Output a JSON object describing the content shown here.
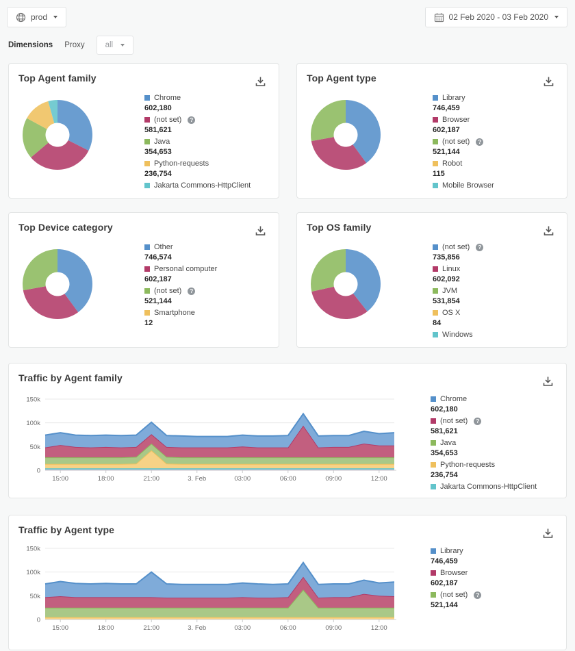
{
  "topbar": {
    "env_label": "prod",
    "date_range": "02 Feb 2020 - 03 Feb 2020"
  },
  "filter_bar": {
    "dimensions_label": "Dimensions",
    "proxy_label": "Proxy",
    "proxy_value": "all"
  },
  "icons": {
    "help_glyph": "?"
  },
  "palette": {
    "blue": {
      "line": "#5590ca",
      "fill": "#7fabd9"
    },
    "crimson": {
      "line": "#b23a68",
      "fill": "#c25f7f"
    },
    "green": {
      "line": "#8cb95d",
      "fill": "#a9c887"
    },
    "amber": {
      "line": "#efc05d",
      "fill": "#f7d286"
    },
    "teal": {
      "line": "#62c4cb",
      "fill": "#7fd0d4"
    },
    "magenta": {
      "line": "#e23fb1",
      "fill": "#ed7ac8"
    }
  },
  "chart_data": [
    {
      "type": "pie",
      "subtype": "donut",
      "title": "Top Agent family",
      "legend": [
        {
          "label": "Chrome",
          "display": "602,180",
          "color": "blue",
          "help": false,
          "arc": 602180
        },
        {
          "label": "(not set)",
          "display": "581,621",
          "color": "crimson",
          "help": true,
          "arc": 581621
        },
        {
          "label": "Java",
          "display": "354,653",
          "color": "green",
          "help": false,
          "arc": 354653
        },
        {
          "label": "Python-requests",
          "display": "236,754",
          "color": "amber",
          "help": false,
          "arc": 236754
        },
        {
          "label": "Jakarta Commons-HttpClient",
          "display": "",
          "color": "teal",
          "help": false,
          "arc": 80000,
          "arc_estimated": true
        }
      ]
    },
    {
      "type": "pie",
      "subtype": "donut",
      "title": "Top Agent type",
      "legend": [
        {
          "label": "Library",
          "display": "746,459",
          "color": "blue",
          "help": false,
          "arc": 746459
        },
        {
          "label": "Browser",
          "display": "602,187",
          "color": "crimson",
          "help": false,
          "arc": 602187
        },
        {
          "label": "(not set)",
          "display": "521,144",
          "color": "green",
          "help": true,
          "arc": 521144
        },
        {
          "label": "Robot",
          "display": "115",
          "color": "amber",
          "help": false,
          "arc": 115
        },
        {
          "label": "Mobile Browser",
          "display": "",
          "color": "teal",
          "help": false,
          "arc": 0
        }
      ]
    },
    {
      "type": "pie",
      "subtype": "donut",
      "title": "Top Device category",
      "legend": [
        {
          "label": "Other",
          "display": "746,574",
          "color": "blue",
          "help": false,
          "arc": 746574
        },
        {
          "label": "Personal computer",
          "display": "602,187",
          "color": "crimson",
          "help": false,
          "arc": 602187
        },
        {
          "label": "(not set)",
          "display": "521,144",
          "color": "green",
          "help": true,
          "arc": 521144
        },
        {
          "label": "Smartphone",
          "display": "12",
          "color": "amber",
          "help": false,
          "arc": 12
        }
      ]
    },
    {
      "type": "pie",
      "subtype": "donut",
      "title": "Top OS family",
      "legend": [
        {
          "label": "(not set)",
          "display": "735,856",
          "color": "blue",
          "help": true,
          "arc": 735856
        },
        {
          "label": "Linux",
          "display": "602,092",
          "color": "crimson",
          "help": false,
          "arc": 602092
        },
        {
          "label": "JVM",
          "display": "531,854",
          "color": "green",
          "help": false,
          "arc": 531854
        },
        {
          "label": "OS X",
          "display": "84",
          "color": "amber",
          "help": false,
          "arc": 84
        },
        {
          "label": "Windows",
          "display": "",
          "color": "teal",
          "help": false,
          "arc": 0
        }
      ]
    },
    {
      "type": "area",
      "stacked": true,
      "title": "Traffic by Agent family",
      "values_unit": "thousands",
      "ylim_k": [
        0,
        150
      ],
      "yticks": [
        {
          "v": 0,
          "label": "0"
        },
        {
          "v": 50,
          "label": "50k"
        },
        {
          "v": 100,
          "label": "100k"
        },
        {
          "v": 150,
          "label": "150k"
        }
      ],
      "xticks": [
        {
          "i": 1,
          "label": "15:00"
        },
        {
          "i": 4,
          "label": "18:00"
        },
        {
          "i": 7,
          "label": "21:00"
        },
        {
          "i": 10,
          "label": "3. Feb"
        },
        {
          "i": 13,
          "label": "03:00"
        },
        {
          "i": 16,
          "label": "06:00"
        },
        {
          "i": 19,
          "label": "09:00"
        },
        {
          "i": 22,
          "label": "12:00"
        }
      ],
      "series": [
        {
          "name": "",
          "color": "magenta",
          "values": [
            1.2,
            1.2,
            1.2,
            1.2,
            1.2,
            1.2,
            1.2,
            1.2,
            1.2,
            1.2,
            1.2,
            1.2,
            1.2,
            1.2,
            1.2,
            1.2,
            1.2,
            1.2,
            1.2,
            1.2,
            1.2,
            1.2,
            1.2,
            1.2
          ]
        },
        {
          "name": "Jakarta Commons-HttpClient",
          "color": "teal",
          "values": [
            3,
            3,
            3,
            3,
            3,
            3,
            3,
            3,
            3,
            3,
            3,
            3,
            3,
            3,
            3,
            3,
            3,
            3,
            3,
            3,
            3,
            3,
            3,
            3
          ]
        },
        {
          "name": "Python-requests",
          "color": "amber",
          "values": [
            9,
            9,
            9,
            9,
            9,
            9,
            10,
            38,
            10,
            9,
            9,
            9,
            9,
            9,
            9,
            9,
            9,
            9,
            9,
            9,
            9,
            9,
            9,
            9
          ]
        },
        {
          "name": "Java",
          "color": "green",
          "values": [
            14,
            14,
            14,
            14,
            14,
            14,
            14,
            14,
            14,
            14,
            14,
            14,
            14,
            14,
            14,
            14,
            14,
            14,
            14,
            14,
            14,
            14,
            14,
            14
          ]
        },
        {
          "name": "(not set)",
          "color": "crimson",
          "values": [
            21,
            26,
            22,
            21,
            22,
            21,
            21,
            20,
            21,
            21,
            21,
            21,
            21,
            23,
            21,
            21,
            21,
            67,
            21,
            22,
            22,
            29,
            25,
            25
          ]
        },
        {
          "name": "Chrome",
          "color": "blue",
          "values": [
            26,
            26,
            25,
            25,
            25,
            25,
            25,
            25,
            24,
            24,
            23,
            23,
            23,
            24,
            24,
            24,
            25,
            25,
            24,
            24,
            24,
            26,
            25,
            27
          ]
        }
      ],
      "legend": [
        {
          "label": "Chrome",
          "display": "602,180",
          "color": "blue",
          "help": false
        },
        {
          "label": "(not set)",
          "display": "581,621",
          "color": "crimson",
          "help": true
        },
        {
          "label": "Java",
          "display": "354,653",
          "color": "green",
          "help": false
        },
        {
          "label": "Python-requests",
          "display": "236,754",
          "color": "amber",
          "help": false
        },
        {
          "label": "Jakarta Commons-HttpClient",
          "display": "",
          "color": "teal",
          "help": false
        }
      ]
    },
    {
      "type": "area",
      "stacked": true,
      "title": "Traffic by Agent type",
      "values_unit": "thousands",
      "ylim_k": [
        0,
        150
      ],
      "yticks": [
        {
          "v": 0,
          "label": "0"
        },
        {
          "v": 50,
          "label": "50k"
        },
        {
          "v": 100,
          "label": "100k"
        },
        {
          "v": 150,
          "label": "150k"
        }
      ],
      "xticks": [
        {
          "i": 1,
          "label": "15:00"
        },
        {
          "i": 4,
          "label": "18:00"
        },
        {
          "i": 7,
          "label": "21:00"
        },
        {
          "i": 10,
          "label": "3. Feb"
        },
        {
          "i": 13,
          "label": "03:00"
        },
        {
          "i": 16,
          "label": "06:00"
        },
        {
          "i": 19,
          "label": "09:00"
        },
        {
          "i": 22,
          "label": "12:00"
        }
      ],
      "series": [
        {
          "name": "",
          "color": "amber",
          "values": [
            5,
            5,
            5,
            5,
            5,
            5,
            5,
            5,
            5,
            5,
            5,
            5,
            5,
            5,
            5,
            5,
            5,
            5,
            5,
            5,
            5,
            5,
            5,
            5
          ]
        },
        {
          "name": "(not set)",
          "color": "green",
          "values": [
            20,
            20,
            20,
            20,
            20,
            20,
            20,
            20,
            20,
            20,
            20,
            20,
            20,
            20,
            20,
            20,
            20,
            58,
            20,
            20,
            20,
            20,
            20,
            20
          ]
        },
        {
          "name": "Browser",
          "color": "crimson",
          "values": [
            22,
            24,
            22,
            22,
            22,
            22,
            22,
            22,
            21,
            21,
            21,
            21,
            21,
            22,
            21,
            21,
            22,
            27,
            21,
            22,
            22,
            29,
            25,
            24
          ]
        },
        {
          "name": "Library",
          "color": "blue",
          "values": [
            28,
            31,
            29,
            28,
            29,
            28,
            28,
            53,
            29,
            28,
            28,
            28,
            28,
            30,
            29,
            28,
            28,
            30,
            28,
            28,
            28,
            29,
            27,
            30
          ]
        }
      ],
      "legend": [
        {
          "label": "Library",
          "display": "746,459",
          "color": "blue",
          "help": false
        },
        {
          "label": "Browser",
          "display": "602,187",
          "color": "crimson",
          "help": false
        },
        {
          "label": "(not set)",
          "display": "521,144",
          "color": "green",
          "help": true
        }
      ]
    }
  ]
}
